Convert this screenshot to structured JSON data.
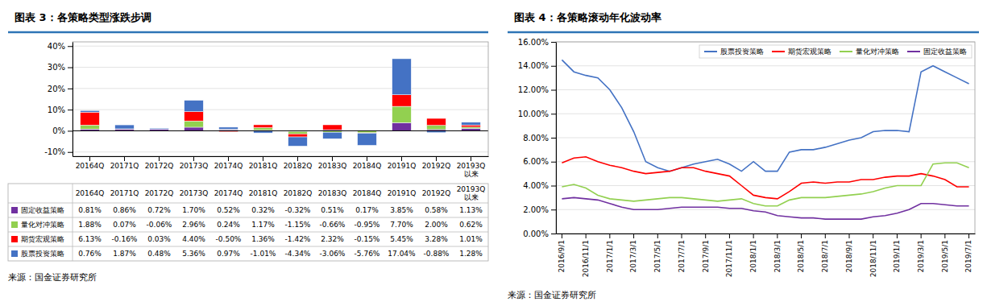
{
  "chart_data": [
    {
      "type": "bar",
      "stacked": true,
      "title": "图表 3：各策略类型涨跌步调",
      "categories": [
        "20164Q",
        "20171Q",
        "20172Q",
        "20173Q",
        "20174Q",
        "20181Q",
        "20182Q",
        "20183Q",
        "20184Q",
        "20191Q",
        "20192Q",
        "20193Q\n以来"
      ],
      "series": [
        {
          "name": "固定收益策略",
          "color": "#7030a0",
          "values": [
            0.81,
            0.86,
            0.72,
            1.7,
            0.52,
            0.32,
            -0.32,
            0.51,
            0.17,
            3.85,
            0.58,
            1.13
          ],
          "value_labels": [
            "0.81%",
            "0.86%",
            "0.72%",
            "1.70%",
            "0.52%",
            "0.32%",
            "-0.32%",
            "0.51%",
            "0.17%",
            "3.85%",
            "0.58%",
            "1.13%"
          ]
        },
        {
          "name": "量化对冲策略",
          "color": "#92d050",
          "values": [
            1.88,
            0.07,
            -0.06,
            2.96,
            0.24,
            1.17,
            -1.15,
            -0.66,
            -0.95,
            7.7,
            2.0,
            0.62
          ],
          "value_labels": [
            "1.88%",
            "0.07%",
            "-0.06%",
            "2.96%",
            "0.24%",
            "1.17%",
            "-1.15%",
            "-0.66%",
            "-0.95%",
            "7.70%",
            "2.00%",
            "0.62%"
          ]
        },
        {
          "name": "期货宏观策略",
          "color": "#ff0000",
          "values": [
            6.13,
            -0.16,
            0.03,
            4.4,
            -0.5,
            1.36,
            -1.42,
            2.32,
            -0.15,
            5.45,
            3.28,
            1.01
          ],
          "value_labels": [
            "6.13%",
            "-0.16%",
            "0.03%",
            "4.40%",
            "-0.50%",
            "1.36%",
            "-1.42%",
            "2.32%",
            "-0.15%",
            "5.45%",
            "3.28%",
            "1.01%"
          ]
        },
        {
          "name": "股票投资策略",
          "color": "#4472c4",
          "values": [
            0.76,
            1.87,
            0.48,
            5.36,
            0.97,
            -1.01,
            -4.34,
            -3.06,
            -5.76,
            17.04,
            -0.88,
            1.28
          ],
          "value_labels": [
            "0.76%",
            "1.87%",
            "0.48%",
            "5.36%",
            "0.97%",
            "-1.01%",
            "-4.34%",
            "-3.06%",
            "-5.76%",
            "17.04%",
            "-0.88%",
            "1.28%"
          ]
        }
      ],
      "ylim": [
        -12,
        42
      ],
      "yticks": [
        {
          "value": -10,
          "label": "-10%"
        },
        {
          "value": 0,
          "label": "0%"
        },
        {
          "value": 10,
          "label": "10%"
        },
        {
          "value": 20,
          "label": "20%"
        },
        {
          "value": 30,
          "label": "30%"
        },
        {
          "value": 40,
          "label": "40%"
        }
      ],
      "grid": true,
      "annotations": [
        "来源：国金证券研究所"
      ]
    },
    {
      "type": "line",
      "title": "图表 4：各策略滚动年化波动率",
      "categories": [
        "2016/9/1",
        null,
        "2016/11/1",
        null,
        "2017/1/1",
        null,
        "2017/3/1",
        null,
        "2017/5/1",
        null,
        "2017/7/1",
        null,
        "2017/9/1",
        null,
        "2017/11/1",
        null,
        "2018/1/1",
        null,
        "2018/3/1",
        null,
        "2018/5/1",
        null,
        "2018/7/1",
        null,
        "2018/9/1",
        null,
        "2018/11/1",
        null,
        "2019/1/1",
        null,
        "2019/3/1",
        null,
        "2019/5/1",
        null,
        "2019/7/1"
      ],
      "series": [
        {
          "name": "股票投资策略",
          "color": "#4472c4",
          "values": [
            14.5,
            13.5,
            13.2,
            13.0,
            12.0,
            10.5,
            8.5,
            6.0,
            5.5,
            5.2,
            5.5,
            5.8,
            6.0,
            6.2,
            5.8,
            5.2,
            6.0,
            5.2,
            5.2,
            6.8,
            7.0,
            7.0,
            7.2,
            7.5,
            7.8,
            8.0,
            8.5,
            8.6,
            8.6,
            8.5,
            13.5,
            14.0,
            13.5,
            13.0,
            12.5
          ]
        },
        {
          "name": "期货宏观策略",
          "color": "#ff0000",
          "values": [
            5.9,
            6.3,
            6.4,
            6.0,
            5.7,
            5.5,
            5.2,
            5.0,
            5.1,
            5.2,
            5.5,
            5.5,
            5.2,
            5.0,
            4.8,
            4.0,
            3.2,
            3.0,
            2.9,
            3.5,
            4.2,
            4.3,
            4.2,
            4.3,
            4.3,
            4.5,
            4.5,
            4.7,
            4.8,
            4.8,
            5.0,
            4.8,
            4.5,
            3.9,
            3.9
          ]
        },
        {
          "name": "量化对冲策略",
          "color": "#92d050",
          "values": [
            3.9,
            4.1,
            3.8,
            3.2,
            2.9,
            2.8,
            2.7,
            2.8,
            2.9,
            3.0,
            3.0,
            2.9,
            2.8,
            2.7,
            2.8,
            2.9,
            2.5,
            2.3,
            2.3,
            2.8,
            3.0,
            3.0,
            3.0,
            3.1,
            3.2,
            3.3,
            3.5,
            3.8,
            4.0,
            4.0,
            4.0,
            5.8,
            5.9,
            5.9,
            5.5
          ]
        },
        {
          "name": "固定收益策略",
          "color": "#7030a0",
          "values": [
            2.9,
            3.0,
            2.9,
            2.8,
            2.5,
            2.2,
            2.0,
            2.0,
            2.0,
            2.1,
            2.2,
            2.2,
            2.2,
            2.2,
            2.1,
            2.1,
            1.9,
            1.8,
            1.5,
            1.4,
            1.3,
            1.3,
            1.2,
            1.2,
            1.2,
            1.2,
            1.4,
            1.5,
            1.7,
            2.0,
            2.5,
            2.5,
            2.4,
            2.3,
            2.3
          ]
        }
      ],
      "ylim": [
        0,
        16
      ],
      "yticks": [
        {
          "value": 0,
          "label": "0.00%"
        },
        {
          "value": 2,
          "label": "2.00%"
        },
        {
          "value": 4,
          "label": "4.00%"
        },
        {
          "value": 6,
          "label": "6.00%"
        },
        {
          "value": 8,
          "label": "8.00%"
        },
        {
          "value": 10,
          "label": "10.00%"
        },
        {
          "value": 12,
          "label": "12.00%"
        },
        {
          "value": 14,
          "label": "14.00%"
        },
        {
          "value": 16,
          "label": "16.00%"
        }
      ],
      "grid": true,
      "legend": "upper right",
      "annotations": [
        "来源：国金证券研究所"
      ]
    }
  ]
}
